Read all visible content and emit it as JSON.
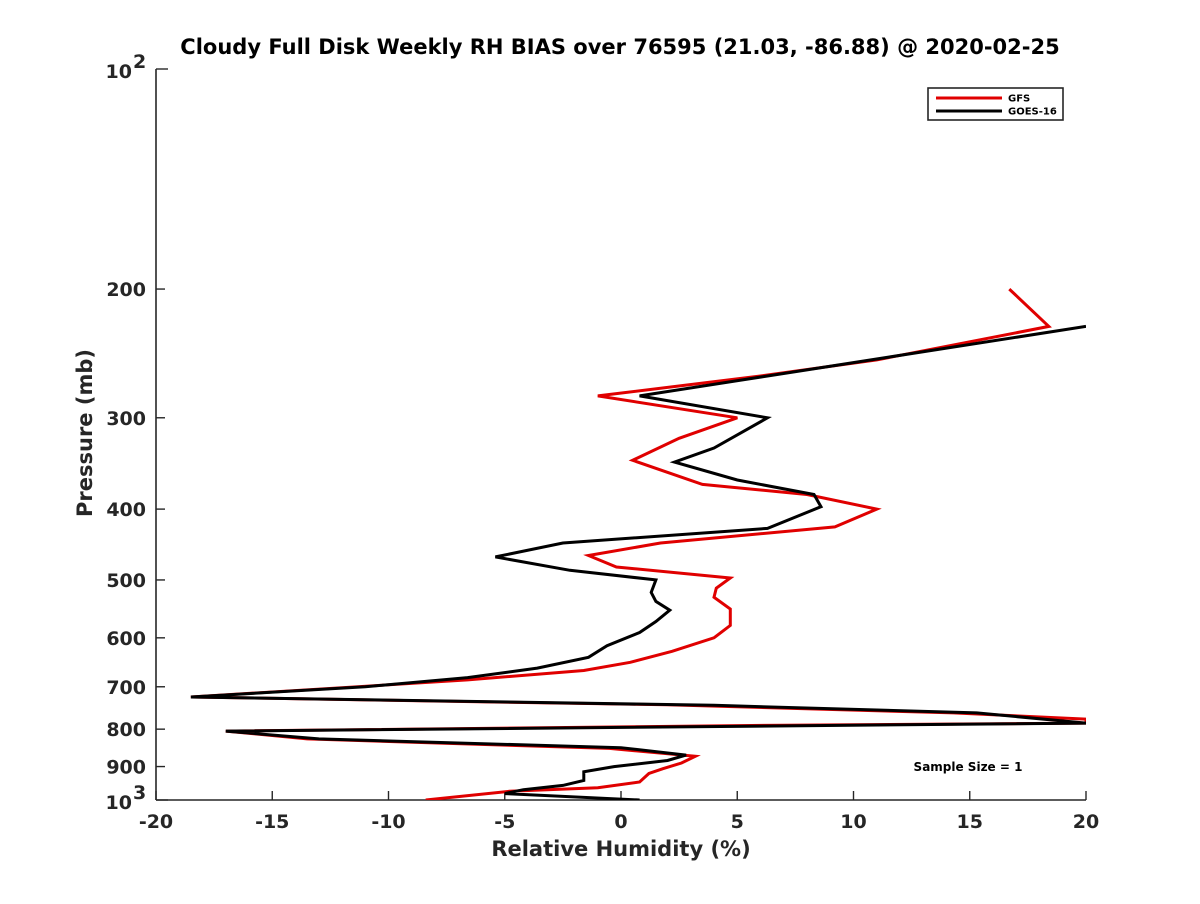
{
  "chart_data": {
    "type": "line",
    "title": "Cloudy Full Disk Weekly RH BIAS over 76595 (21.03, -86.88) @ 2020-02-25",
    "xlabel": "Relative Humidity (%)",
    "ylabel": "Pressure (mb)",
    "xlim": [
      -20,
      20
    ],
    "ylim": [
      100,
      1000
    ],
    "yscale": "log",
    "y_reversed": true,
    "xticks": [
      -20,
      -15,
      -10,
      -5,
      0,
      5,
      10,
      15,
      20
    ],
    "xtick_labels": [
      "-20",
      "-15",
      "-10",
      "-5",
      "0",
      "5",
      "10",
      "15",
      "20"
    ],
    "yticks": [
      200,
      300,
      400,
      500,
      600,
      700,
      800,
      900
    ],
    "ytick_labels": [
      "200",
      "300",
      "400",
      "500",
      "600",
      "700",
      "800",
      "900"
    ],
    "y_major_ticks": [
      {
        "value": 100,
        "base": "10",
        "exp": "2"
      },
      {
        "value": 1000,
        "base": "10",
        "exp": "3"
      }
    ],
    "legend_position": "top-right",
    "annotation": "Sample Size = 1",
    "series": [
      {
        "name": "GFS",
        "color": "#e00000",
        "points": [
          [
            16.7,
            200
          ],
          [
            18.4,
            225
          ],
          [
            11,
            250
          ],
          [
            6,
            263
          ],
          [
            -1,
            280
          ],
          [
            5,
            300
          ],
          [
            2.5,
            320
          ],
          [
            0.5,
            343
          ],
          [
            3.5,
            370
          ],
          [
            8,
            382
          ],
          [
            11,
            400
          ],
          [
            9.2,
            423
          ],
          [
            1.7,
            445
          ],
          [
            -1.4,
            463
          ],
          [
            -0.2,
            480
          ],
          [
            4.7,
            497
          ],
          [
            4.1,
            513
          ],
          [
            4,
            528
          ],
          [
            4.7,
            548
          ],
          [
            4.7,
            577
          ],
          [
            4,
            600
          ],
          [
            2.2,
            626
          ],
          [
            0.4,
            648
          ],
          [
            -1.6,
            665
          ],
          [
            -6.6,
            685
          ],
          [
            -12,
            702
          ],
          [
            -18.5,
            723
          ],
          [
            2,
            741
          ],
          [
            14.3,
            760
          ],
          [
            20,
            775
          ],
          [
            20,
            785
          ],
          [
            7,
            790
          ],
          [
            -17,
            805
          ],
          [
            -13.5,
            825
          ],
          [
            -0.5,
            850
          ],
          [
            3.2,
            871
          ],
          [
            2.6,
            890
          ],
          [
            1.8,
            906
          ],
          [
            1.2,
            920
          ],
          [
            0.8,
            945
          ],
          [
            -1,
            962
          ],
          [
            -4.8,
            973
          ],
          [
            -8.4,
            1000
          ]
        ]
      },
      {
        "name": "GOES-16",
        "color": "#000000",
        "points": [
          [
            20,
            225
          ],
          [
            6.3,
            263
          ],
          [
            0.8,
            280
          ],
          [
            6.3,
            300
          ],
          [
            4,
            330
          ],
          [
            2.3,
            345
          ],
          [
            5,
            365
          ],
          [
            8.3,
            382
          ],
          [
            8.6,
            397
          ],
          [
            6.3,
            425
          ],
          [
            -2.5,
            445
          ],
          [
            -5.4,
            465
          ],
          [
            -2.2,
            485
          ],
          [
            1.5,
            500
          ],
          [
            1.3,
            520
          ],
          [
            1.5,
            535
          ],
          [
            2.1,
            550
          ],
          [
            1.5,
            570
          ],
          [
            0.8,
            590
          ],
          [
            -0.6,
            615
          ],
          [
            -1.4,
            638
          ],
          [
            -3.6,
            660
          ],
          [
            -6.6,
            680
          ],
          [
            -11,
            700
          ],
          [
            -18.5,
            723
          ],
          [
            4,
            742
          ],
          [
            15.3,
            760
          ],
          [
            20,
            785
          ],
          [
            -17,
            805
          ],
          [
            -13,
            825
          ],
          [
            0,
            848
          ],
          [
            2.8,
            868
          ],
          [
            2,
            883
          ],
          [
            -0.3,
            900
          ],
          [
            -1.6,
            915
          ],
          [
            -1.6,
            940
          ],
          [
            -2.5,
            955
          ],
          [
            -4.2,
            968
          ],
          [
            -5,
            980
          ],
          [
            0.8,
            1000
          ]
        ]
      }
    ]
  }
}
